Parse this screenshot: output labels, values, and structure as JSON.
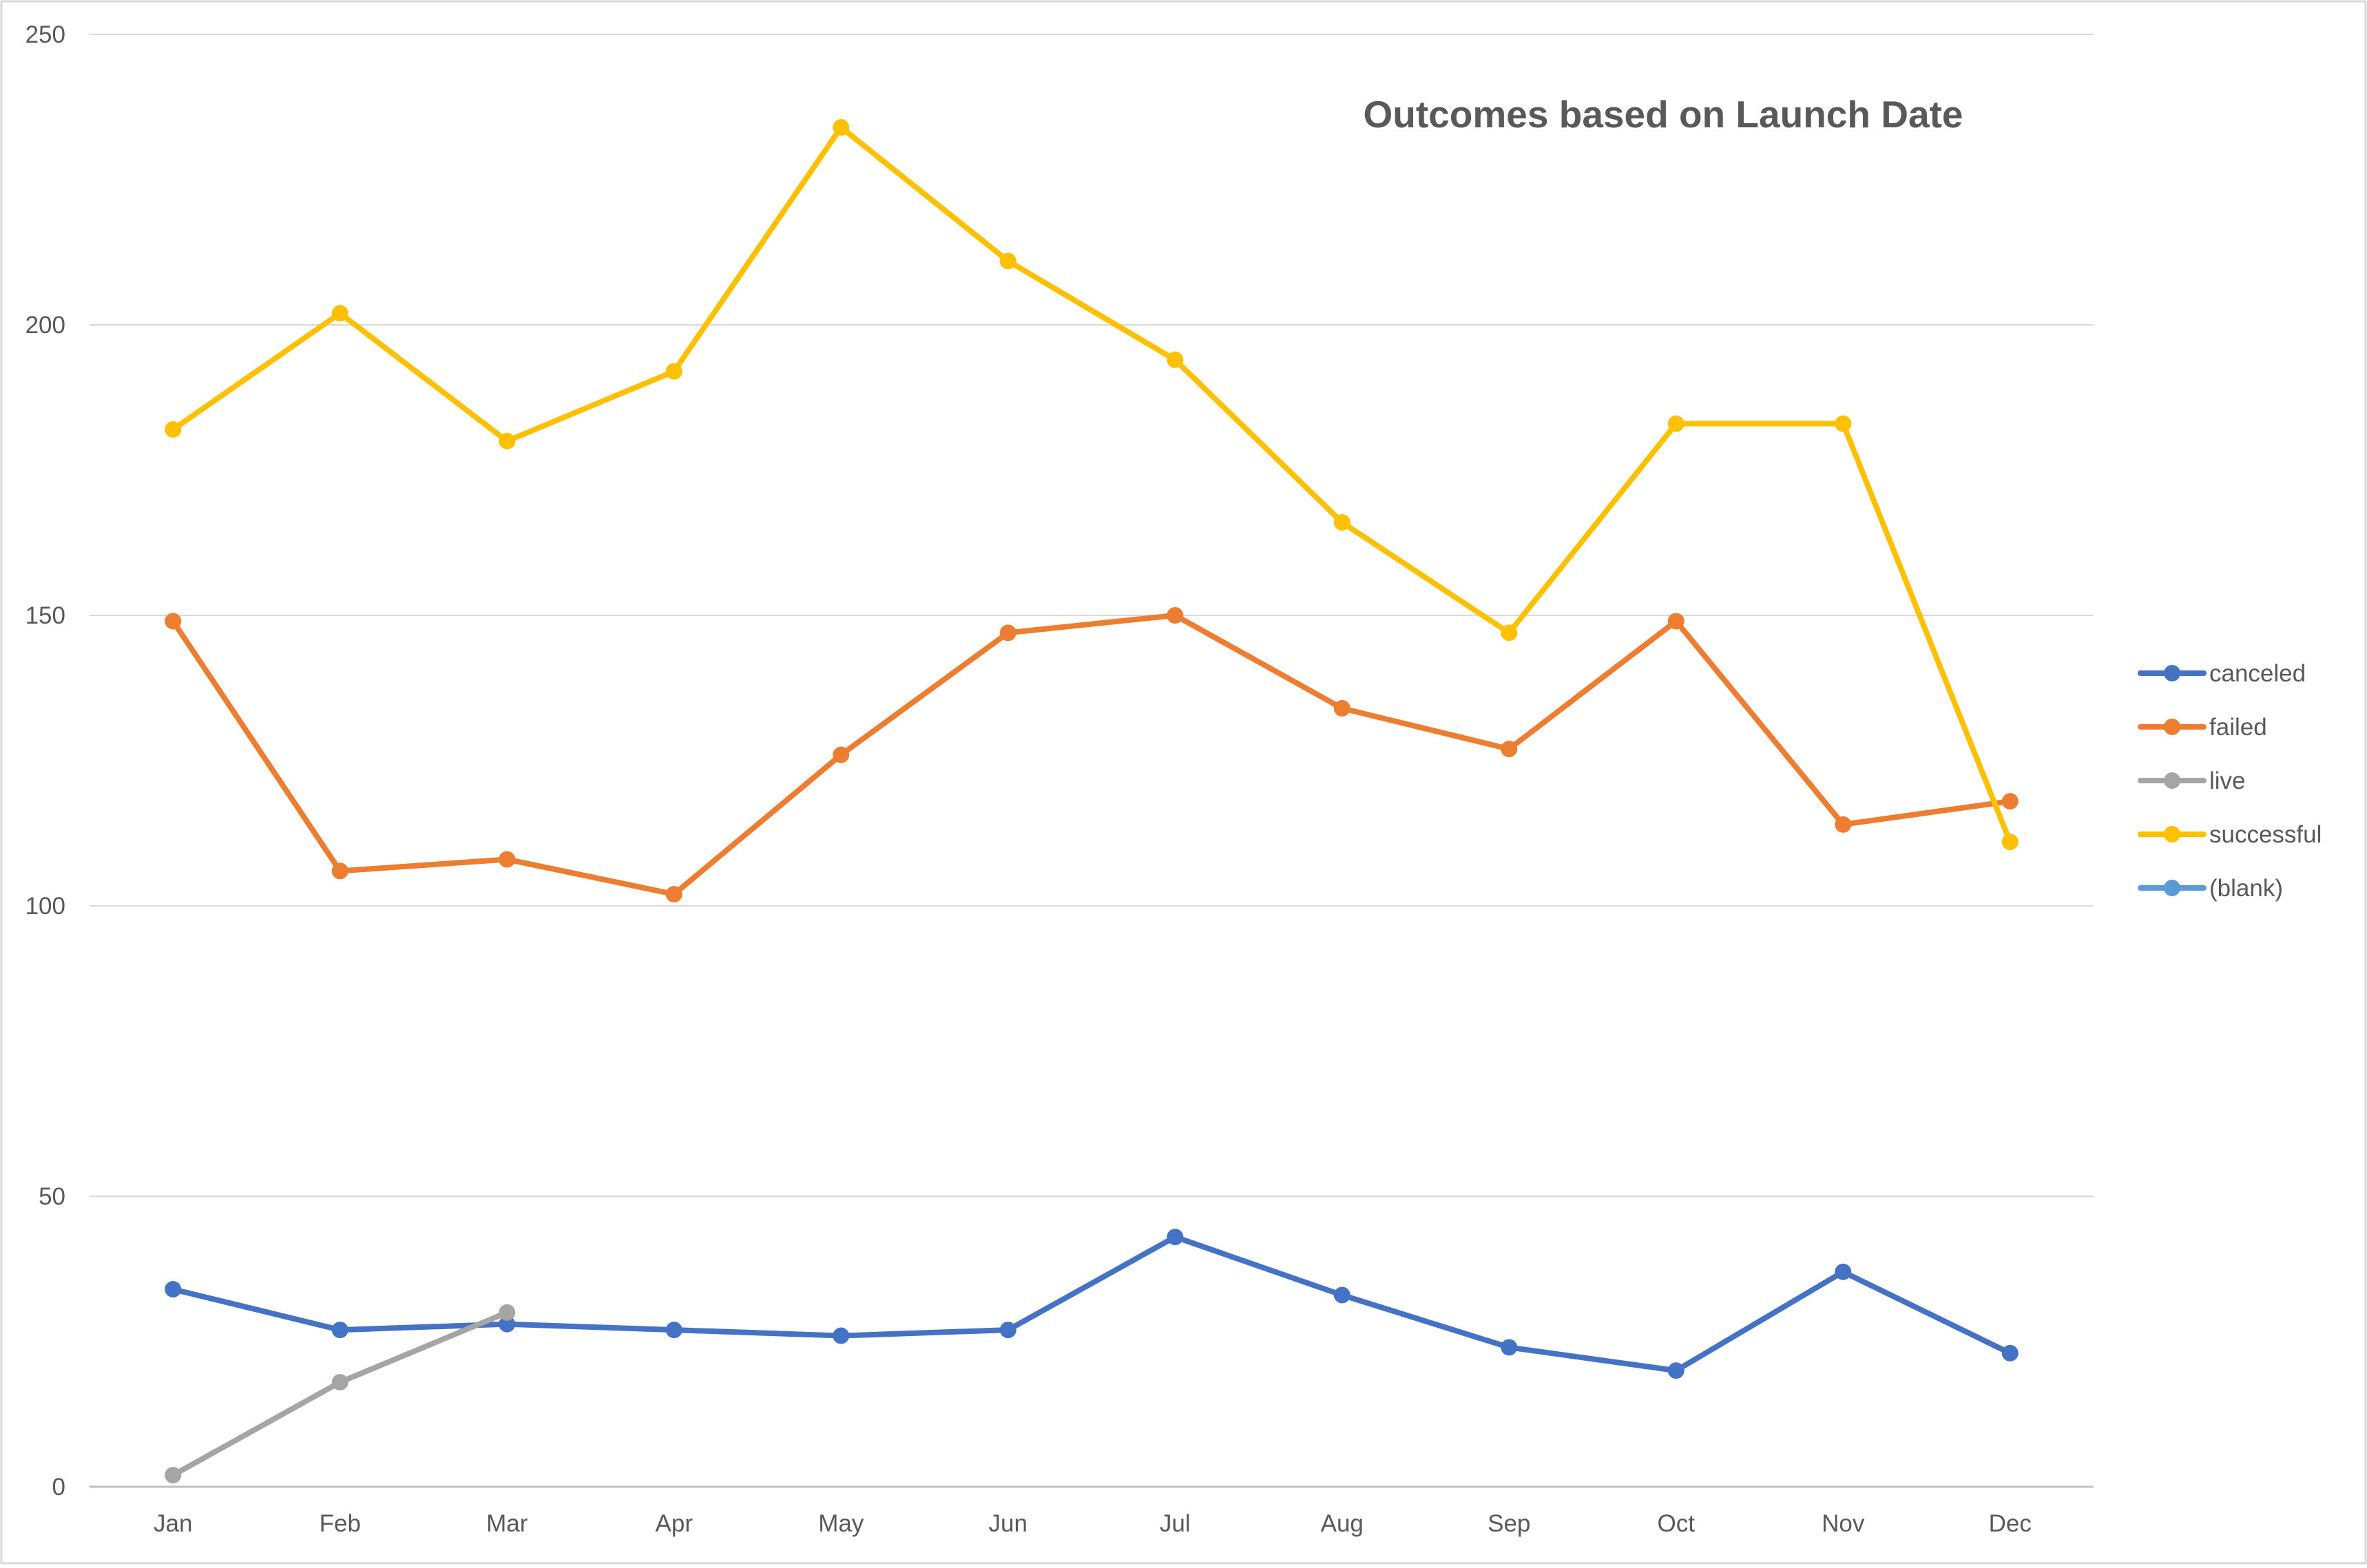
{
  "chart_data": {
    "type": "line",
    "title": "Outcomes based on Launch Date",
    "xlabel": "",
    "ylabel": "",
    "categories": [
      "Jan",
      "Feb",
      "Mar",
      "Apr",
      "May",
      "Jun",
      "Jul",
      "Aug",
      "Sep",
      "Oct",
      "Nov",
      "Dec"
    ],
    "ylim": [
      0,
      250
    ],
    "yticks": [
      0,
      50,
      100,
      150,
      200,
      250
    ],
    "grid": true,
    "legend_position": "right",
    "series": [
      {
        "name": "canceled",
        "color": "#4472C4",
        "values": [
          34,
          27,
          28,
          27,
          26,
          27,
          43,
          33,
          24,
          20,
          37,
          23
        ]
      },
      {
        "name": "failed",
        "color": "#ED7D31",
        "values": [
          149,
          106,
          108,
          102,
          126,
          147,
          150,
          134,
          127,
          149,
          114,
          118
        ]
      },
      {
        "name": "live",
        "color": "#A5A5A5",
        "values": [
          2,
          18,
          30,
          null,
          null,
          null,
          null,
          null,
          null,
          null,
          null,
          null
        ]
      },
      {
        "name": "successful",
        "color": "#FFC000",
        "values": [
          182,
          202,
          180,
          192,
          234,
          211,
          194,
          166,
          147,
          183,
          183,
          111
        ]
      },
      {
        "name": "(blank)",
        "color": "#5B9BD5",
        "values": [
          null,
          null,
          null,
          null,
          null,
          null,
          null,
          null,
          null,
          null,
          null,
          null
        ]
      }
    ]
  }
}
